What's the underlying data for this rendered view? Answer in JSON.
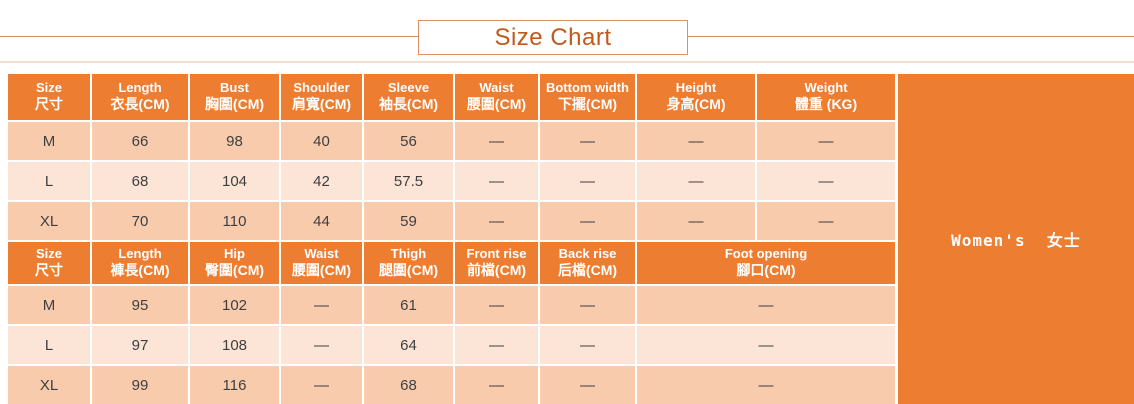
{
  "title": "Size Chart",
  "colors": {
    "header_bg": "#ED7D31",
    "panel_bg": "#EC7D31",
    "row_dark": "#F8CBAD",
    "row_light": "#FCE4D6",
    "title_text": "#C0591A",
    "rule": "#D98C5F",
    "box_border": "#DD9063",
    "faint_line": "#F3DECD",
    "data_text": "#3F3F3F"
  },
  "side_panel": {
    "label": "Women's  女士"
  },
  "table": {
    "sections": [
      {
        "name": "tops",
        "spans": [
          1,
          1,
          1,
          1,
          1,
          1,
          1,
          1,
          1
        ],
        "headers": [
          {
            "en": "Size",
            "zh": "尺寸"
          },
          {
            "en": "Length",
            "zh": "衣長(CM)"
          },
          {
            "en": "Bust",
            "zh": "胸圍(CM)"
          },
          {
            "en": "Shoulder",
            "zh": "肩寬(CM)"
          },
          {
            "en": "Sleeve",
            "zh": "袖長(CM)"
          },
          {
            "en": "Waist",
            "zh": "腰圍(CM)"
          },
          {
            "en": "Bottom width",
            "zh": "下擺(CM)"
          },
          {
            "en": "Height",
            "zh": "身高(CM)"
          },
          {
            "en": "Weight",
            "zh": "體重 (KG)"
          }
        ],
        "rows": [
          [
            "M",
            "66",
            "98",
            "40",
            "56",
            "—",
            "—",
            "—",
            "—"
          ],
          [
            "L",
            "68",
            "104",
            "42",
            "57.5",
            "—",
            "—",
            "—",
            "—"
          ],
          [
            "XL",
            "70",
            "110",
            "44",
            "59",
            "—",
            "—",
            "—",
            "—"
          ]
        ]
      },
      {
        "name": "bottoms",
        "spans": [
          1,
          1,
          1,
          1,
          1,
          1,
          1,
          2
        ],
        "headers": [
          {
            "en": "Size",
            "zh": "尺寸"
          },
          {
            "en": "Length",
            "zh": "褲長(CM)"
          },
          {
            "en": "Hip",
            "zh": "臀圍(CM)"
          },
          {
            "en": "Waist",
            "zh": "腰圍(CM)"
          },
          {
            "en": "Thigh",
            "zh": "腿圍(CM)"
          },
          {
            "en": "Front rise",
            "zh": "前檔(CM)"
          },
          {
            "en": "Back rise",
            "zh": "后檔(CM)"
          },
          {
            "en": "Foot opening",
            "zh": "腳口(CM)"
          }
        ],
        "rows": [
          [
            "M",
            "95",
            "102",
            "—",
            "61",
            "—",
            "—",
            "—"
          ],
          [
            "L",
            "97",
            "108",
            "—",
            "64",
            "—",
            "—",
            "—"
          ],
          [
            "XL",
            "99",
            "116",
            "—",
            "68",
            "—",
            "—",
            "—"
          ]
        ]
      }
    ]
  }
}
